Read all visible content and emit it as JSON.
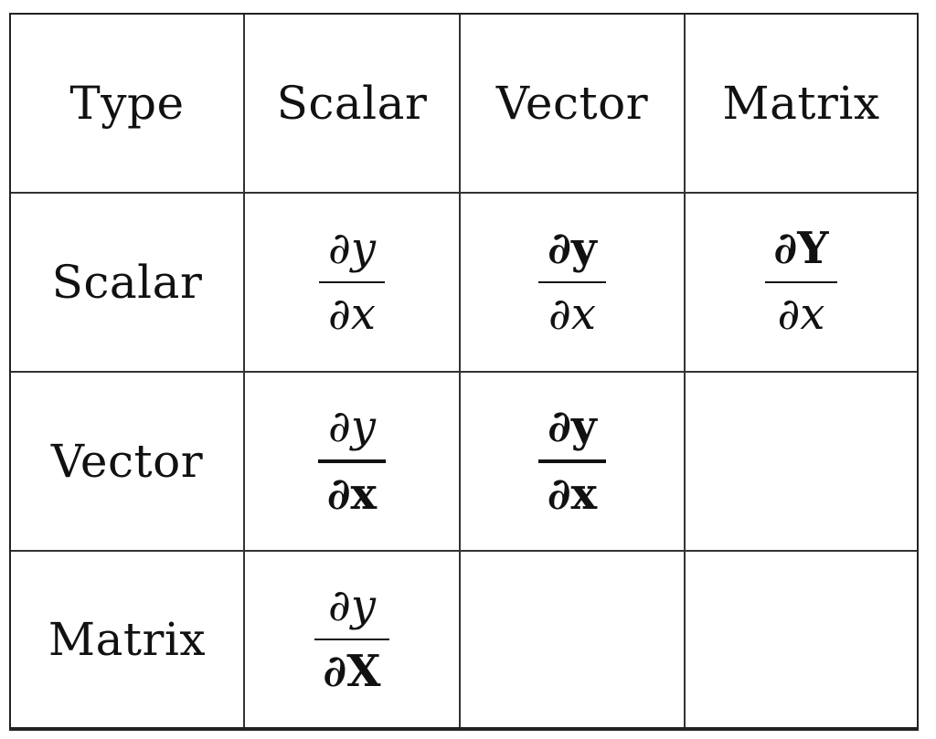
{
  "table": {
    "header": {
      "corner": "Type",
      "columns": [
        "Scalar",
        "Vector",
        "Matrix"
      ]
    },
    "rows": [
      {
        "label": "Scalar",
        "cells": [
          {
            "numerator": "∂y",
            "denominator": "∂x"
          },
          {
            "numerator": "∂y",
            "denominator": "∂x"
          },
          {
            "numerator": "∂Y",
            "denominator": "∂x"
          }
        ]
      },
      {
        "label": "Vector",
        "cells": [
          {
            "numerator": "∂y",
            "denominator": "∂x"
          },
          {
            "numerator": "∂y",
            "denominator": "∂x"
          },
          null
        ]
      },
      {
        "label": "Matrix",
        "cells": [
          {
            "numerator": "∂y",
            "denominator": "∂X"
          },
          null,
          null
        ]
      }
    ]
  }
}
